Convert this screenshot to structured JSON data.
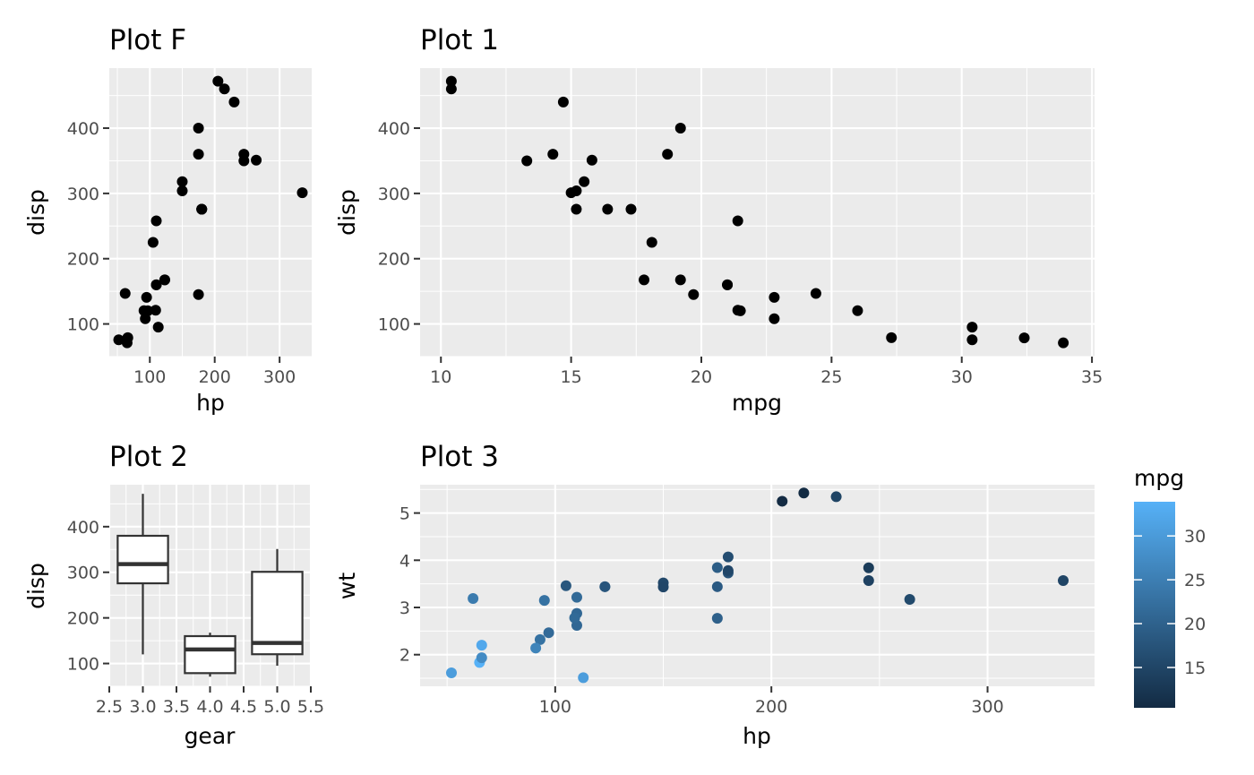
{
  "colors": {
    "panel": "#ebebeb",
    "point": "#000000",
    "gradient_low": "#132b43",
    "gradient_high": "#56b1f7",
    "box_line": "#333333"
  },
  "chart_data": [
    {
      "id": "plotF",
      "type": "scatter",
      "title": "Plot F",
      "xlabel": "hp",
      "ylabel": "disp",
      "xlim": [
        37.5,
        349.5
      ],
      "ylim": [
        50,
        492
      ],
      "xticks": [
        100,
        200,
        300
      ],
      "xtick_labels": [
        "100",
        "200",
        "300"
      ],
      "yticks": [
        100,
        200,
        300,
        400
      ],
      "ytick_labels": [
        "100",
        "200",
        "300",
        "400"
      ],
      "xminor": [
        50,
        150,
        250
      ],
      "yminor": [
        50,
        150,
        250,
        350,
        450
      ],
      "grid": true,
      "x": [
        110,
        110,
        93,
        110,
        175,
        105,
        245,
        62,
        95,
        123,
        123,
        180,
        180,
        180,
        205,
        215,
        230,
        66,
        52,
        65,
        97,
        150,
        150,
        245,
        175,
        66,
        91,
        113,
        264,
        175,
        335,
        109
      ],
      "y": [
        160,
        160,
        108,
        258,
        360,
        225,
        360,
        146.7,
        140.8,
        167.6,
        167.6,
        275.8,
        275.8,
        275.8,
        472,
        460,
        440,
        78.7,
        75.7,
        71.1,
        120.1,
        318,
        304,
        350,
        400,
        79,
        120.3,
        95.1,
        351,
        145,
        301,
        121
      ]
    },
    {
      "id": "plot1",
      "type": "scatter",
      "title": "Plot 1",
      "xlabel": "mpg",
      "ylabel": "disp",
      "xlim": [
        9.2,
        35.1
      ],
      "ylim": [
        50,
        492
      ],
      "xticks": [
        10,
        15,
        20,
        25,
        30,
        35
      ],
      "xtick_labels": [
        "10",
        "15",
        "20",
        "25",
        "30",
        "35"
      ],
      "yticks": [
        100,
        200,
        300,
        400
      ],
      "ytick_labels": [
        "100",
        "200",
        "300",
        "400"
      ],
      "xminor": [
        12.5,
        17.5,
        22.5,
        27.5,
        32.5
      ],
      "yminor": [
        50,
        150,
        250,
        350,
        450
      ],
      "grid": true,
      "x": [
        21,
        21,
        22.8,
        21.4,
        18.7,
        18.1,
        14.3,
        24.4,
        22.8,
        19.2,
        17.8,
        16.4,
        17.3,
        15.2,
        10.4,
        10.4,
        14.7,
        32.4,
        30.4,
        33.9,
        21.5,
        15.5,
        15.2,
        13.3,
        19.2,
        27.3,
        26,
        30.4,
        15.8,
        19.7,
        15,
        21.4
      ],
      "y": [
        160,
        160,
        108,
        258,
        360,
        225,
        360,
        146.7,
        140.8,
        167.6,
        167.6,
        275.8,
        275.8,
        275.8,
        472,
        460,
        440,
        78.7,
        75.7,
        71.1,
        120.1,
        318,
        304,
        350,
        400,
        79,
        120.3,
        95.1,
        351,
        145,
        301,
        121
      ]
    },
    {
      "id": "plot2",
      "type": "boxplot",
      "title": "Plot 2",
      "xlabel": "gear",
      "ylabel": "disp",
      "xlim": [
        2.5,
        5.5
      ],
      "ylim": [
        50,
        492
      ],
      "xticks": [
        2.5,
        3.0,
        3.5,
        4.0,
        4.5,
        5.0,
        5.5
      ],
      "xtick_labels": [
        "2.5",
        "3.0",
        "3.5",
        "4.0",
        "4.5",
        "5.0",
        "5.5"
      ],
      "yticks": [
        100,
        200,
        300,
        400
      ],
      "ytick_labels": [
        "100",
        "200",
        "300",
        "400"
      ],
      "xminor": [
        2.75,
        3.25,
        3.75,
        4.25,
        4.75,
        5.25
      ],
      "yminor": [
        50,
        150,
        250,
        350,
        450
      ],
      "grid": true,
      "boxes": [
        {
          "x": 3,
          "min": 120.1,
          "q1": 275.8,
          "median": 318,
          "q3": 380,
          "max": 472
        },
        {
          "x": 4,
          "min": 71.1,
          "q1": 78.85,
          "median": 130.9,
          "q3": 160,
          "max": 167.6
        },
        {
          "x": 5,
          "min": 95.1,
          "q1": 120.3,
          "median": 145,
          "q3": 301,
          "max": 351
        }
      ]
    },
    {
      "id": "plot3",
      "type": "scatter",
      "title": "Plot 3",
      "xlabel": "hp",
      "ylabel": "wt",
      "xlim": [
        37.5,
        349.5
      ],
      "ylim": [
        1.33,
        5.6
      ],
      "xticks": [
        100,
        200,
        300
      ],
      "xtick_labels": [
        "100",
        "200",
        "300"
      ],
      "yticks": [
        2,
        3,
        4,
        5
      ],
      "ytick_labels": [
        "2",
        "3",
        "4",
        "5"
      ],
      "xminor": [
        50,
        150,
        250
      ],
      "yminor": [
        1.5,
        2.5,
        3.5,
        4.5,
        5.5
      ],
      "grid": true,
      "color_var": "mpg",
      "x": [
        110,
        110,
        93,
        110,
        175,
        105,
        245,
        62,
        95,
        123,
        123,
        180,
        180,
        180,
        205,
        215,
        230,
        66,
        52,
        65,
        97,
        150,
        150,
        245,
        175,
        66,
        91,
        113,
        264,
        175,
        335,
        109
      ],
      "y": [
        2.62,
        2.875,
        2.32,
        3.215,
        3.44,
        3.46,
        3.57,
        3.19,
        3.15,
        3.44,
        3.44,
        4.07,
        3.73,
        3.78,
        5.25,
        5.424,
        5.345,
        2.2,
        1.615,
        1.835,
        2.465,
        3.52,
        3.435,
        3.84,
        3.845,
        1.935,
        2.14,
        1.513,
        3.17,
        2.77,
        3.57,
        2.78
      ],
      "color_values": [
        21,
        21,
        22.8,
        21.4,
        18.7,
        18.1,
        14.3,
        24.4,
        22.8,
        19.2,
        17.8,
        16.4,
        17.3,
        15.2,
        10.4,
        10.4,
        14.7,
        32.4,
        30.4,
        33.9,
        21.5,
        15.5,
        15.2,
        13.3,
        19.2,
        27.3,
        26,
        30.4,
        15.8,
        19.7,
        15,
        21.4
      ],
      "legend": {
        "title": "mpg",
        "min": 10.4,
        "max": 33.9,
        "breaks": [
          15,
          20,
          25,
          30
        ],
        "break_labels": [
          "15",
          "20",
          "25",
          "30"
        ],
        "position": "right"
      }
    }
  ]
}
